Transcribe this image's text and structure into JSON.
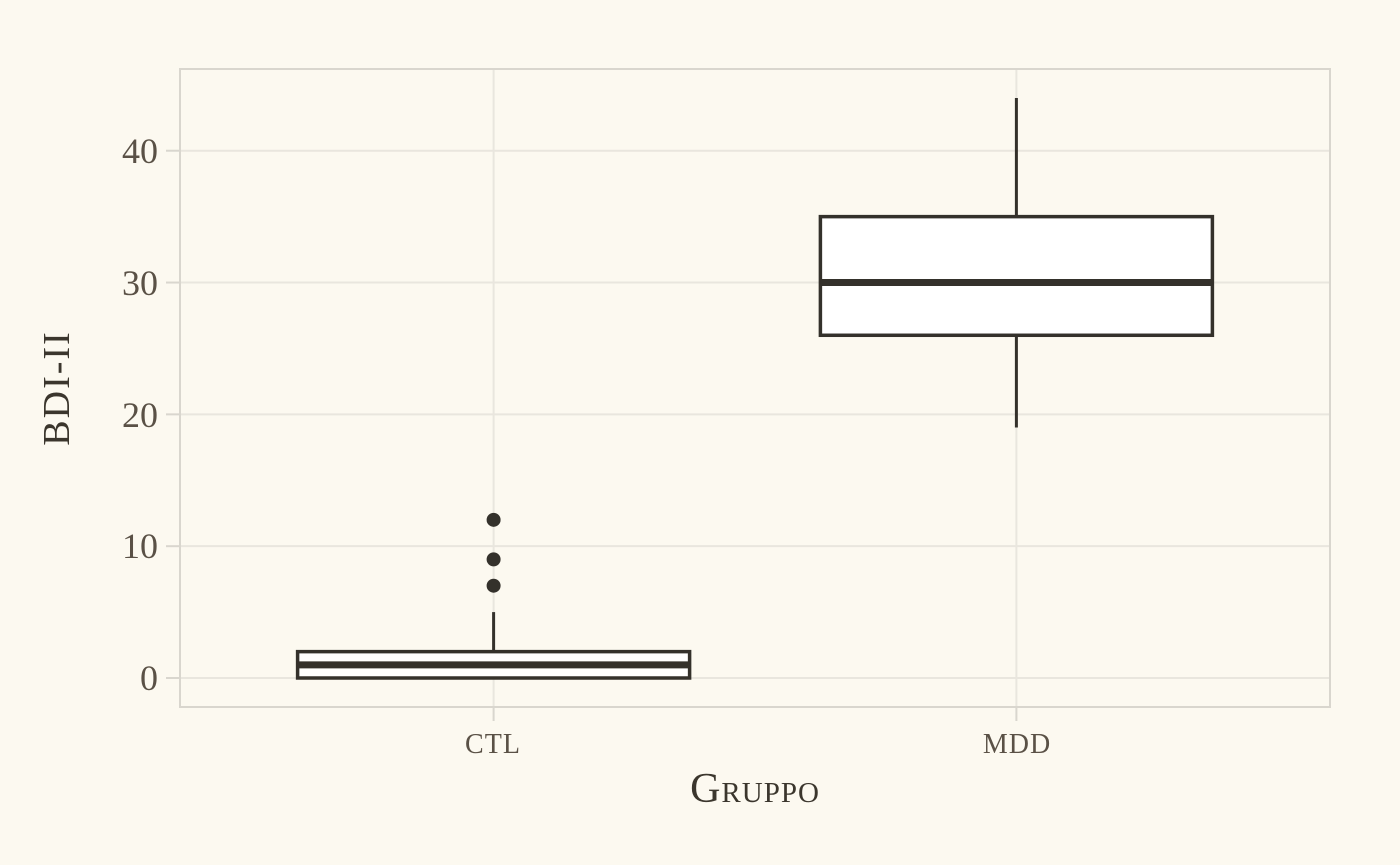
{
  "chart_data": {
    "type": "boxplot",
    "xlabel": "Gruppo",
    "ylabel": "BDI-II",
    "categories": [
      "CTL",
      "MDD"
    ],
    "yticks": [
      0,
      10,
      20,
      30,
      40
    ],
    "ytick_labels": [
      "40",
      "30",
      "20",
      "10",
      "0"
    ],
    "ylim": [
      -2.2,
      46.2
    ],
    "grid": "major-only",
    "legend": "none",
    "series": [
      {
        "name": "CTL",
        "whisker_low": 0,
        "q1": 0,
        "median": 1,
        "q3": 2,
        "whisker_high": 5,
        "outliers": [
          7,
          9,
          12
        ]
      },
      {
        "name": "MDD",
        "whisker_low": 19,
        "q1": 26,
        "median": 30,
        "q3": 35,
        "whisker_high": 44,
        "outliers": []
      }
    ],
    "colors": {
      "background": "#fcf9f0",
      "panel_border": "#d9d6ce",
      "gridline": "#e9e6de",
      "axis_tick": "#d9d6ce",
      "box_stroke": "#34312b",
      "box_fill": "#ffffff",
      "outlier": "#34312b",
      "tick_label": "#5a5146",
      "axis_title": "#3b362d"
    }
  }
}
